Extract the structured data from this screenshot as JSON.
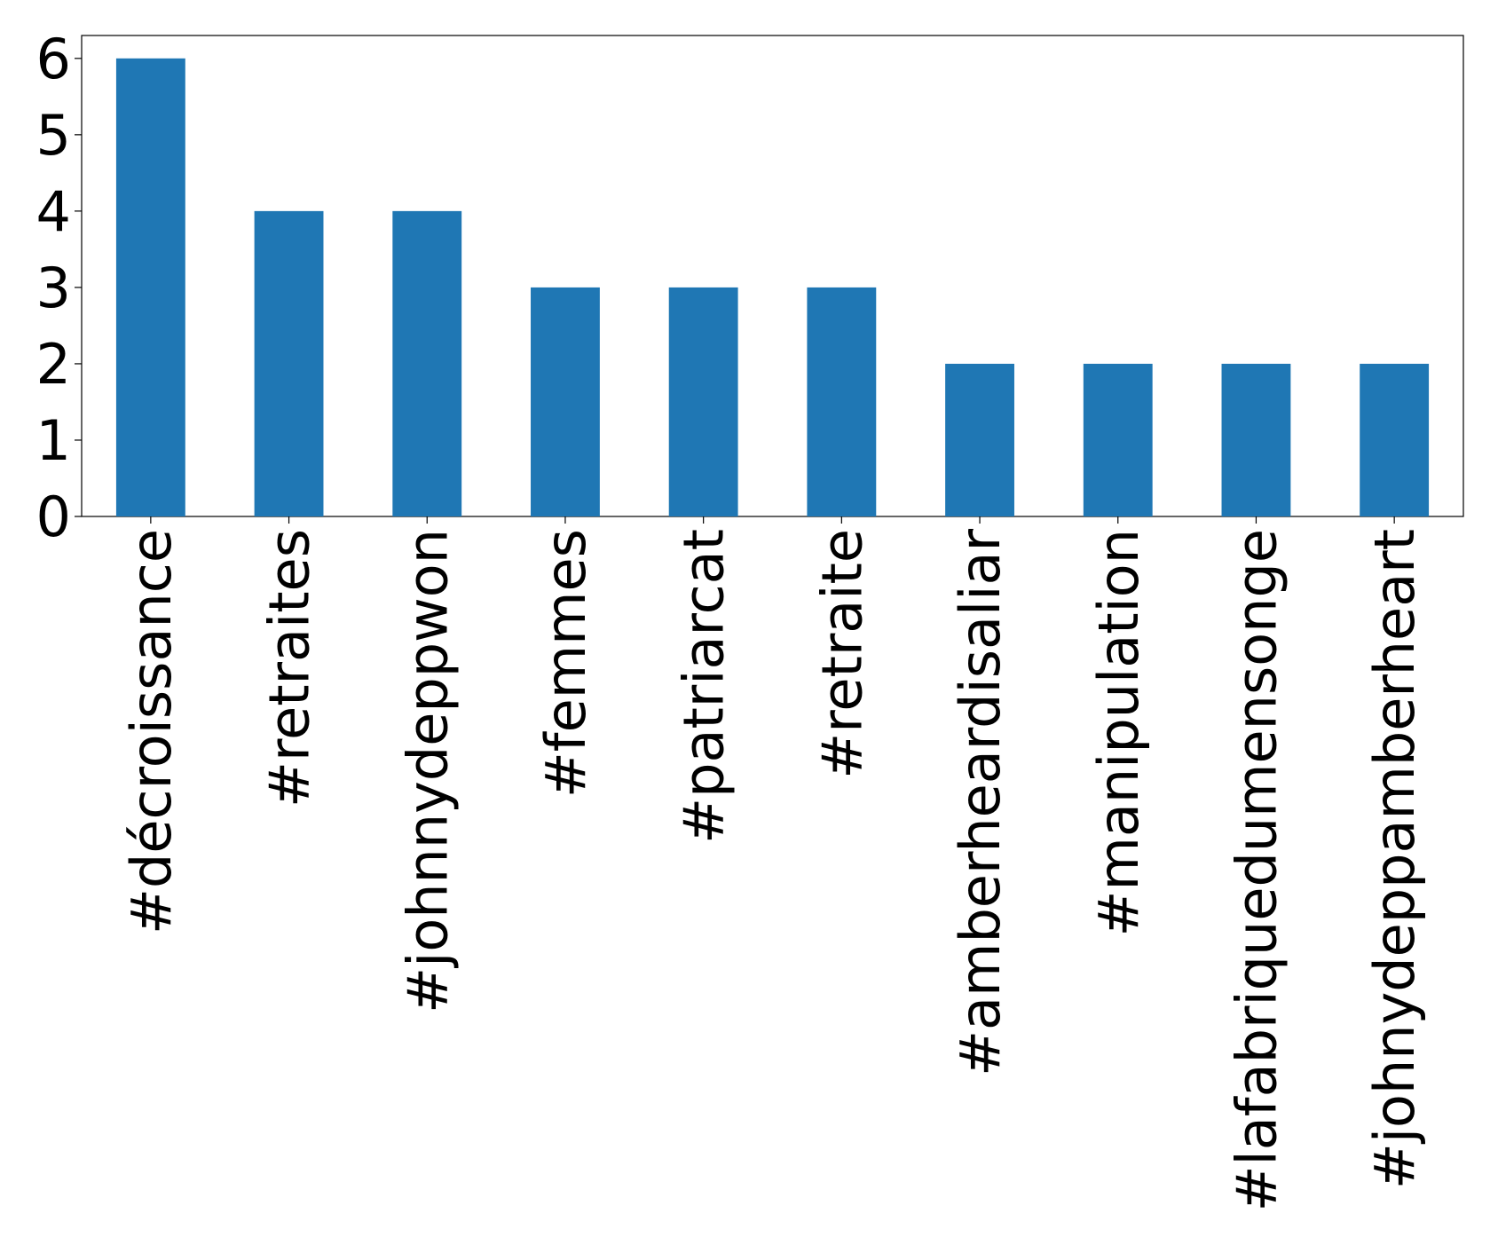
{
  "chart_data": {
    "type": "bar",
    "categories": [
      "#décroissance",
      "#retraites",
      "#johnnydeppwon",
      "#femmes",
      "#patriarcat",
      "#retraite",
      "#amberheardisaliar",
      "#manipulation",
      "#lafabriquedumensonge",
      "#johnydeppamberheart"
    ],
    "values": [
      6,
      4,
      4,
      3,
      3,
      3,
      2,
      2,
      2,
      2
    ],
    "color": "#1f77b4",
    "ylim": [
      0,
      6.3
    ],
    "yticks": [
      0,
      1,
      2,
      3,
      4,
      5,
      6
    ],
    "grid": false
  }
}
